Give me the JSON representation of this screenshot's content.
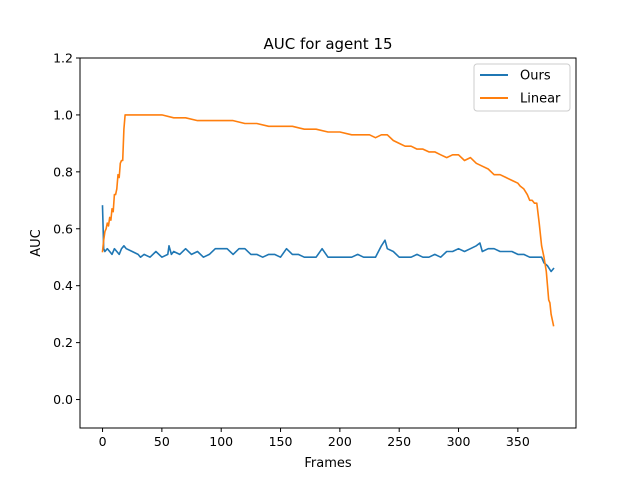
{
  "chart_data": {
    "type": "line",
    "title": "AUC for agent 15",
    "xlabel": "Frames",
    "ylabel": "AUC",
    "xlim": [
      -19,
      399
    ],
    "ylim": [
      -0.1,
      1.2
    ],
    "xticks": [
      0,
      50,
      100,
      150,
      200,
      250,
      300,
      350
    ],
    "yticks": [
      0.0,
      0.2,
      0.4,
      0.6,
      0.8,
      1.0,
      1.2
    ],
    "xtick_labels": [
      "0",
      "50",
      "100",
      "150",
      "200",
      "250",
      "300",
      "350"
    ],
    "ytick_labels": [
      "0.0",
      "0.2",
      "0.4",
      "0.6",
      "0.8",
      "1.0",
      "1.2"
    ],
    "grid": false,
    "legend": {
      "position": "top-right"
    },
    "series": [
      {
        "name": "Ours",
        "color": "#1f77b4",
        "x": [
          0,
          1,
          2,
          4,
          6,
          8,
          10,
          12,
          14,
          16,
          18,
          20,
          25,
          30,
          32,
          35,
          40,
          45,
          50,
          55,
          56,
          58,
          60,
          65,
          70,
          75,
          80,
          85,
          90,
          95,
          100,
          105,
          110,
          115,
          120,
          125,
          130,
          135,
          140,
          145,
          150,
          155,
          160,
          165,
          170,
          175,
          180,
          185,
          190,
          195,
          200,
          205,
          210,
          215,
          220,
          225,
          230,
          235,
          238,
          240,
          245,
          250,
          255,
          260,
          265,
          270,
          275,
          280,
          285,
          290,
          295,
          300,
          305,
          310,
          315,
          318,
          320,
          325,
          330,
          335,
          340,
          345,
          350,
          355,
          360,
          365,
          370,
          372,
          375,
          378,
          380
        ],
        "y": [
          0.68,
          0.53,
          0.52,
          0.53,
          0.52,
          0.51,
          0.53,
          0.52,
          0.51,
          0.53,
          0.54,
          0.53,
          0.52,
          0.51,
          0.5,
          0.51,
          0.5,
          0.52,
          0.5,
          0.51,
          0.54,
          0.51,
          0.52,
          0.51,
          0.53,
          0.51,
          0.52,
          0.5,
          0.51,
          0.53,
          0.53,
          0.53,
          0.51,
          0.53,
          0.53,
          0.51,
          0.51,
          0.5,
          0.51,
          0.51,
          0.5,
          0.53,
          0.51,
          0.51,
          0.5,
          0.5,
          0.5,
          0.53,
          0.5,
          0.5,
          0.5,
          0.5,
          0.5,
          0.51,
          0.5,
          0.5,
          0.5,
          0.54,
          0.56,
          0.53,
          0.52,
          0.5,
          0.5,
          0.5,
          0.51,
          0.5,
          0.5,
          0.51,
          0.5,
          0.52,
          0.52,
          0.53,
          0.52,
          0.53,
          0.54,
          0.55,
          0.52,
          0.53,
          0.53,
          0.52,
          0.52,
          0.52,
          0.51,
          0.51,
          0.5,
          0.5,
          0.5,
          0.48,
          0.47,
          0.45,
          0.46
        ]
      },
      {
        "name": "Linear",
        "color": "#ff7f0e",
        "x": [
          0,
          1,
          2,
          3,
          4,
          5,
          6,
          7,
          8,
          9,
          10,
          11,
          12,
          13,
          14,
          15,
          16,
          17,
          18,
          19,
          20,
          25,
          30,
          40,
          50,
          60,
          70,
          80,
          90,
          100,
          110,
          120,
          130,
          140,
          150,
          160,
          170,
          180,
          190,
          200,
          210,
          220,
          225,
          230,
          235,
          240,
          245,
          250,
          255,
          260,
          265,
          270,
          275,
          280,
          285,
          290,
          295,
          300,
          305,
          310,
          315,
          320,
          325,
          330,
          335,
          340,
          345,
          350,
          352,
          355,
          358,
          360,
          362,
          364,
          366,
          368,
          370,
          372,
          374,
          375,
          376,
          377,
          378,
          379,
          380
        ],
        "y": [
          0.52,
          0.56,
          0.59,
          0.6,
          0.62,
          0.61,
          0.64,
          0.63,
          0.67,
          0.66,
          0.72,
          0.72,
          0.74,
          0.79,
          0.78,
          0.83,
          0.84,
          0.84,
          0.95,
          1.0,
          1.0,
          1.0,
          1.0,
          1.0,
          1.0,
          0.99,
          0.99,
          0.98,
          0.98,
          0.98,
          0.98,
          0.97,
          0.97,
          0.96,
          0.96,
          0.96,
          0.95,
          0.95,
          0.94,
          0.94,
          0.93,
          0.93,
          0.93,
          0.92,
          0.93,
          0.93,
          0.91,
          0.9,
          0.89,
          0.89,
          0.88,
          0.88,
          0.87,
          0.87,
          0.86,
          0.85,
          0.86,
          0.86,
          0.84,
          0.85,
          0.83,
          0.82,
          0.81,
          0.79,
          0.79,
          0.78,
          0.77,
          0.76,
          0.75,
          0.74,
          0.72,
          0.7,
          0.7,
          0.69,
          0.69,
          0.62,
          0.54,
          0.5,
          0.45,
          0.4,
          0.35,
          0.34,
          0.3,
          0.28,
          0.26
        ]
      }
    ]
  }
}
